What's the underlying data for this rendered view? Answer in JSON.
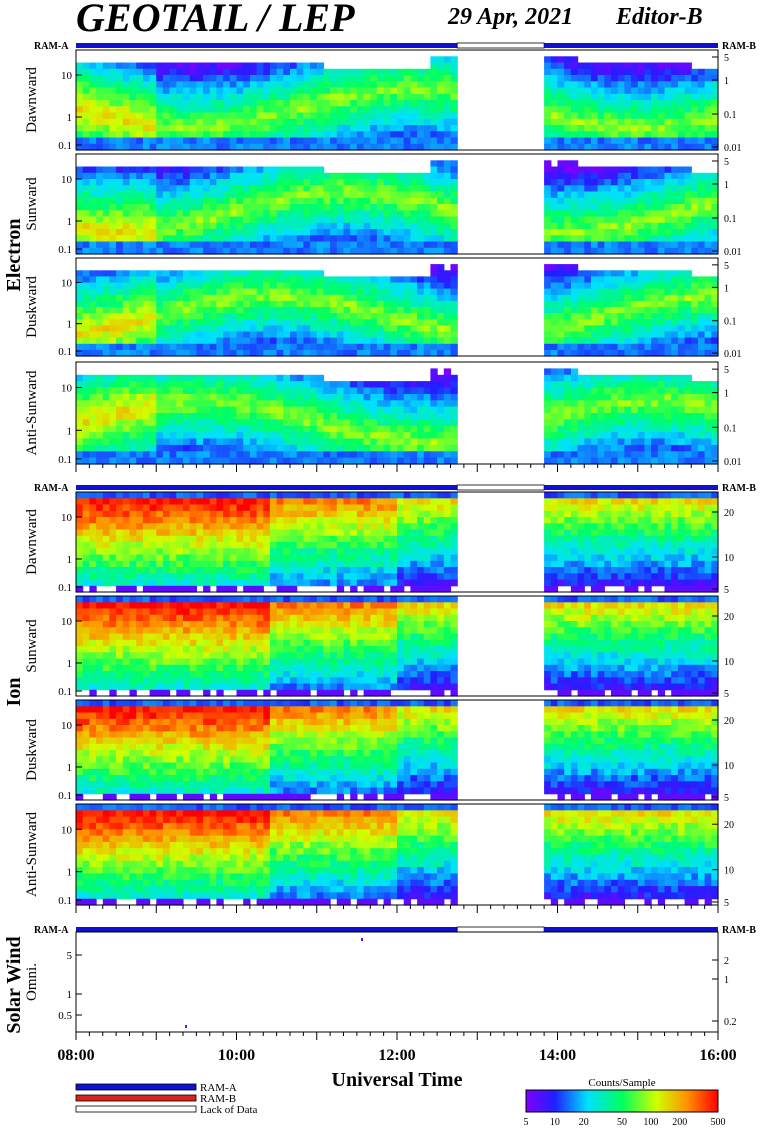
{
  "header": {
    "title": "GEOTAIL / LEP",
    "date": "29 Apr, 2021",
    "editor": "Editor-B"
  },
  "colors": {
    "ram_a": "#1010d0",
    "ram_b": "#e02020",
    "lack_of_data": "#ffffff"
  },
  "x_axis": {
    "label": "Universal Time",
    "ticks": [
      "08:00",
      "10:00",
      "12:00",
      "14:00",
      "16:00"
    ],
    "range": [
      "08:00",
      "16:00"
    ],
    "data_gap": [
      "12:45",
      "13:50"
    ]
  },
  "groups": [
    {
      "name": "Electron",
      "mode_labels": [
        "RAM-A",
        "RAM-B"
      ],
      "panels": [
        {
          "name": "Dawnward",
          "left_ticks": [
            "10",
            "1",
            "0.1"
          ],
          "right_ticks": [
            "5",
            "1",
            "0.1",
            "0.01"
          ]
        },
        {
          "name": "Sunward",
          "left_ticks": [
            "10",
            "1",
            "0.1"
          ],
          "right_ticks": [
            "5",
            "1",
            "0.1",
            "0.01"
          ]
        },
        {
          "name": "Duskward",
          "left_ticks": [
            "10",
            "1",
            "0.1"
          ],
          "right_ticks": [
            "5",
            "1",
            "0.1",
            "0.01"
          ]
        },
        {
          "name": "Anti-Sunward",
          "left_ticks": [
            "10",
            "1",
            "0.1"
          ],
          "right_ticks": [
            "5",
            "1",
            "0.1",
            "0.01"
          ]
        }
      ]
    },
    {
      "name": "Ion",
      "mode_labels": [
        "RAM-A",
        "RAM-B"
      ],
      "panels": [
        {
          "name": "Dawnward",
          "left_ticks": [
            "10",
            "1",
            "0.1"
          ],
          "right_ticks": [
            "20",
            "10",
            "5"
          ]
        },
        {
          "name": "Sunward",
          "left_ticks": [
            "10",
            "1",
            "0.1"
          ],
          "right_ticks": [
            "20",
            "10",
            "5"
          ]
        },
        {
          "name": "Duskward",
          "left_ticks": [
            "10",
            "1",
            "0.1"
          ],
          "right_ticks": [
            "20",
            "10",
            "5"
          ]
        },
        {
          "name": "Anti-Sunward",
          "left_ticks": [
            "10",
            "1",
            "0.1"
          ],
          "right_ticks": [
            "20",
            "10",
            "5"
          ]
        }
      ]
    },
    {
      "name": "Solar Wind",
      "mode_labels": [
        "RAM-A",
        "RAM-B"
      ],
      "panels": [
        {
          "name": "Omni.",
          "left_ticks": [
            "5",
            "1",
            "0.5"
          ],
          "right_ticks": [
            "2",
            "1",
            "0.2"
          ]
        }
      ]
    }
  ],
  "legend": {
    "entries": [
      "RAM-A",
      "RAM-B",
      "Lack of Data"
    ]
  },
  "colorbar": {
    "title": "Counts/Sample",
    "ticks": [
      "5",
      "10",
      "20",
      "50",
      "100",
      "200",
      "500"
    ]
  },
  "chart_data": {
    "type": "heatmap",
    "title": "GEOTAIL / LEP",
    "xlabel": "Universal Time",
    "x_range": [
      "08:00",
      "16:00"
    ],
    "y_scale": "log",
    "color_scale": "log",
    "colorbar_range": [
      5,
      500
    ],
    "colorbar_label": "Counts/Sample"
  }
}
